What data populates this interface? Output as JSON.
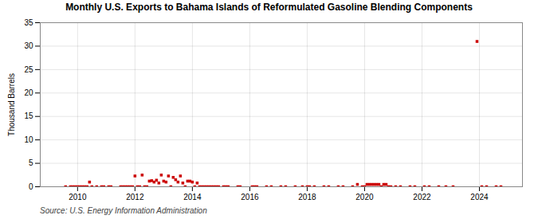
{
  "chart_data": {
    "type": "scatter",
    "title": "Monthly U.S. Exports to Bahama Islands of Reformulated Gasoline Blending Components",
    "ylabel": "Thousand Barrels",
    "source": "Source: U.S. Energy Information Administration",
    "x": [
      2009.583,
      2009.75,
      2009.833,
      2009.917,
      2010.0,
      2010.083,
      2010.167,
      2010.25,
      2010.333,
      2010.417,
      2010.5,
      2010.667,
      2010.833,
      2010.917,
      2011.083,
      2011.167,
      2011.5,
      2011.583,
      2011.667,
      2011.75,
      2011.833,
      2011.917,
      2012.0,
      2012.083,
      2012.167,
      2012.25,
      2012.333,
      2012.417,
      2012.5,
      2012.583,
      2012.667,
      2012.75,
      2012.833,
      2012.917,
      2013.0,
      2013.083,
      2013.167,
      2013.25,
      2013.333,
      2013.417,
      2013.5,
      2013.583,
      2013.667,
      2013.75,
      2013.833,
      2013.917,
      2014.0,
      2014.083,
      2014.167,
      2014.25,
      2014.333,
      2014.417,
      2014.5,
      2014.583,
      2014.667,
      2014.75,
      2014.833,
      2014.917,
      2015.083,
      2015.167,
      2015.25,
      2015.583,
      2015.667,
      2016.083,
      2016.167,
      2016.25,
      2016.583,
      2016.75,
      2017.083,
      2017.25,
      2017.583,
      2017.833,
      2018.0,
      2018.083,
      2018.25,
      2018.583,
      2018.75,
      2019.083,
      2019.25,
      2019.583,
      2019.75,
      2019.917,
      2020.0,
      2020.083,
      2020.167,
      2020.25,
      2020.333,
      2020.417,
      2020.5,
      2020.583,
      2020.667,
      2020.75,
      2020.833,
      2020.917,
      2021.083,
      2021.25,
      2021.583,
      2021.75,
      2022.083,
      2022.25,
      2022.583,
      2022.833,
      2023.083,
      2023.917,
      2024.083,
      2024.25,
      2024.583,
      2024.75
    ],
    "values": [
      0.0,
      0.0,
      0.0,
      0.0,
      0.0,
      0.0,
      0.0,
      0.0,
      0.0,
      1.0,
      0.0,
      0.0,
      0.0,
      0.0,
      0.0,
      0.0,
      0.0,
      0.0,
      0.0,
      0.0,
      0.0,
      0.0,
      2.3,
      0.0,
      0.0,
      2.5,
      0.0,
      0.0,
      1.2,
      1.3,
      1.0,
      1.4,
      0.8,
      2.5,
      1.2,
      1.0,
      2.3,
      0.0,
      2.0,
      1.5,
      1.0,
      2.3,
      0.8,
      0.0,
      1.2,
      1.2,
      1.0,
      0.0,
      0.8,
      0.0,
      0.0,
      0.0,
      0.0,
      0.0,
      0.0,
      0.0,
      0.0,
      0.0,
      0.0,
      0.0,
      0.0,
      0.0,
      0.0,
      0.0,
      0.0,
      0.0,
      0.0,
      0.0,
      0.0,
      0.0,
      0.0,
      0.0,
      0.0,
      0.0,
      0.0,
      0.0,
      0.0,
      0.0,
      0.0,
      0.0,
      0.5,
      0.0,
      0.0,
      0.5,
      0.5,
      0.5,
      0.5,
      0.5,
      0.5,
      0.0,
      0.5,
      0.5,
      0.0,
      0.0,
      0.0,
      0.0,
      0.0,
      0.0,
      0.0,
      0.0,
      0.0,
      0.0,
      0.0,
      31.0,
      0.0,
      0.0,
      0.0,
      0.0
    ],
    "color": "#cc0000",
    "marker": "square",
    "grid": true,
    "xlim": [
      2008.7,
      2025.5
    ],
    "xticks": [
      2010,
      2012,
      2014,
      2016,
      2018,
      2020,
      2022,
      2024
    ],
    "ylim": [
      0,
      35
    ],
    "yticks": [
      0,
      5,
      10,
      15,
      20,
      25,
      30,
      35
    ]
  }
}
